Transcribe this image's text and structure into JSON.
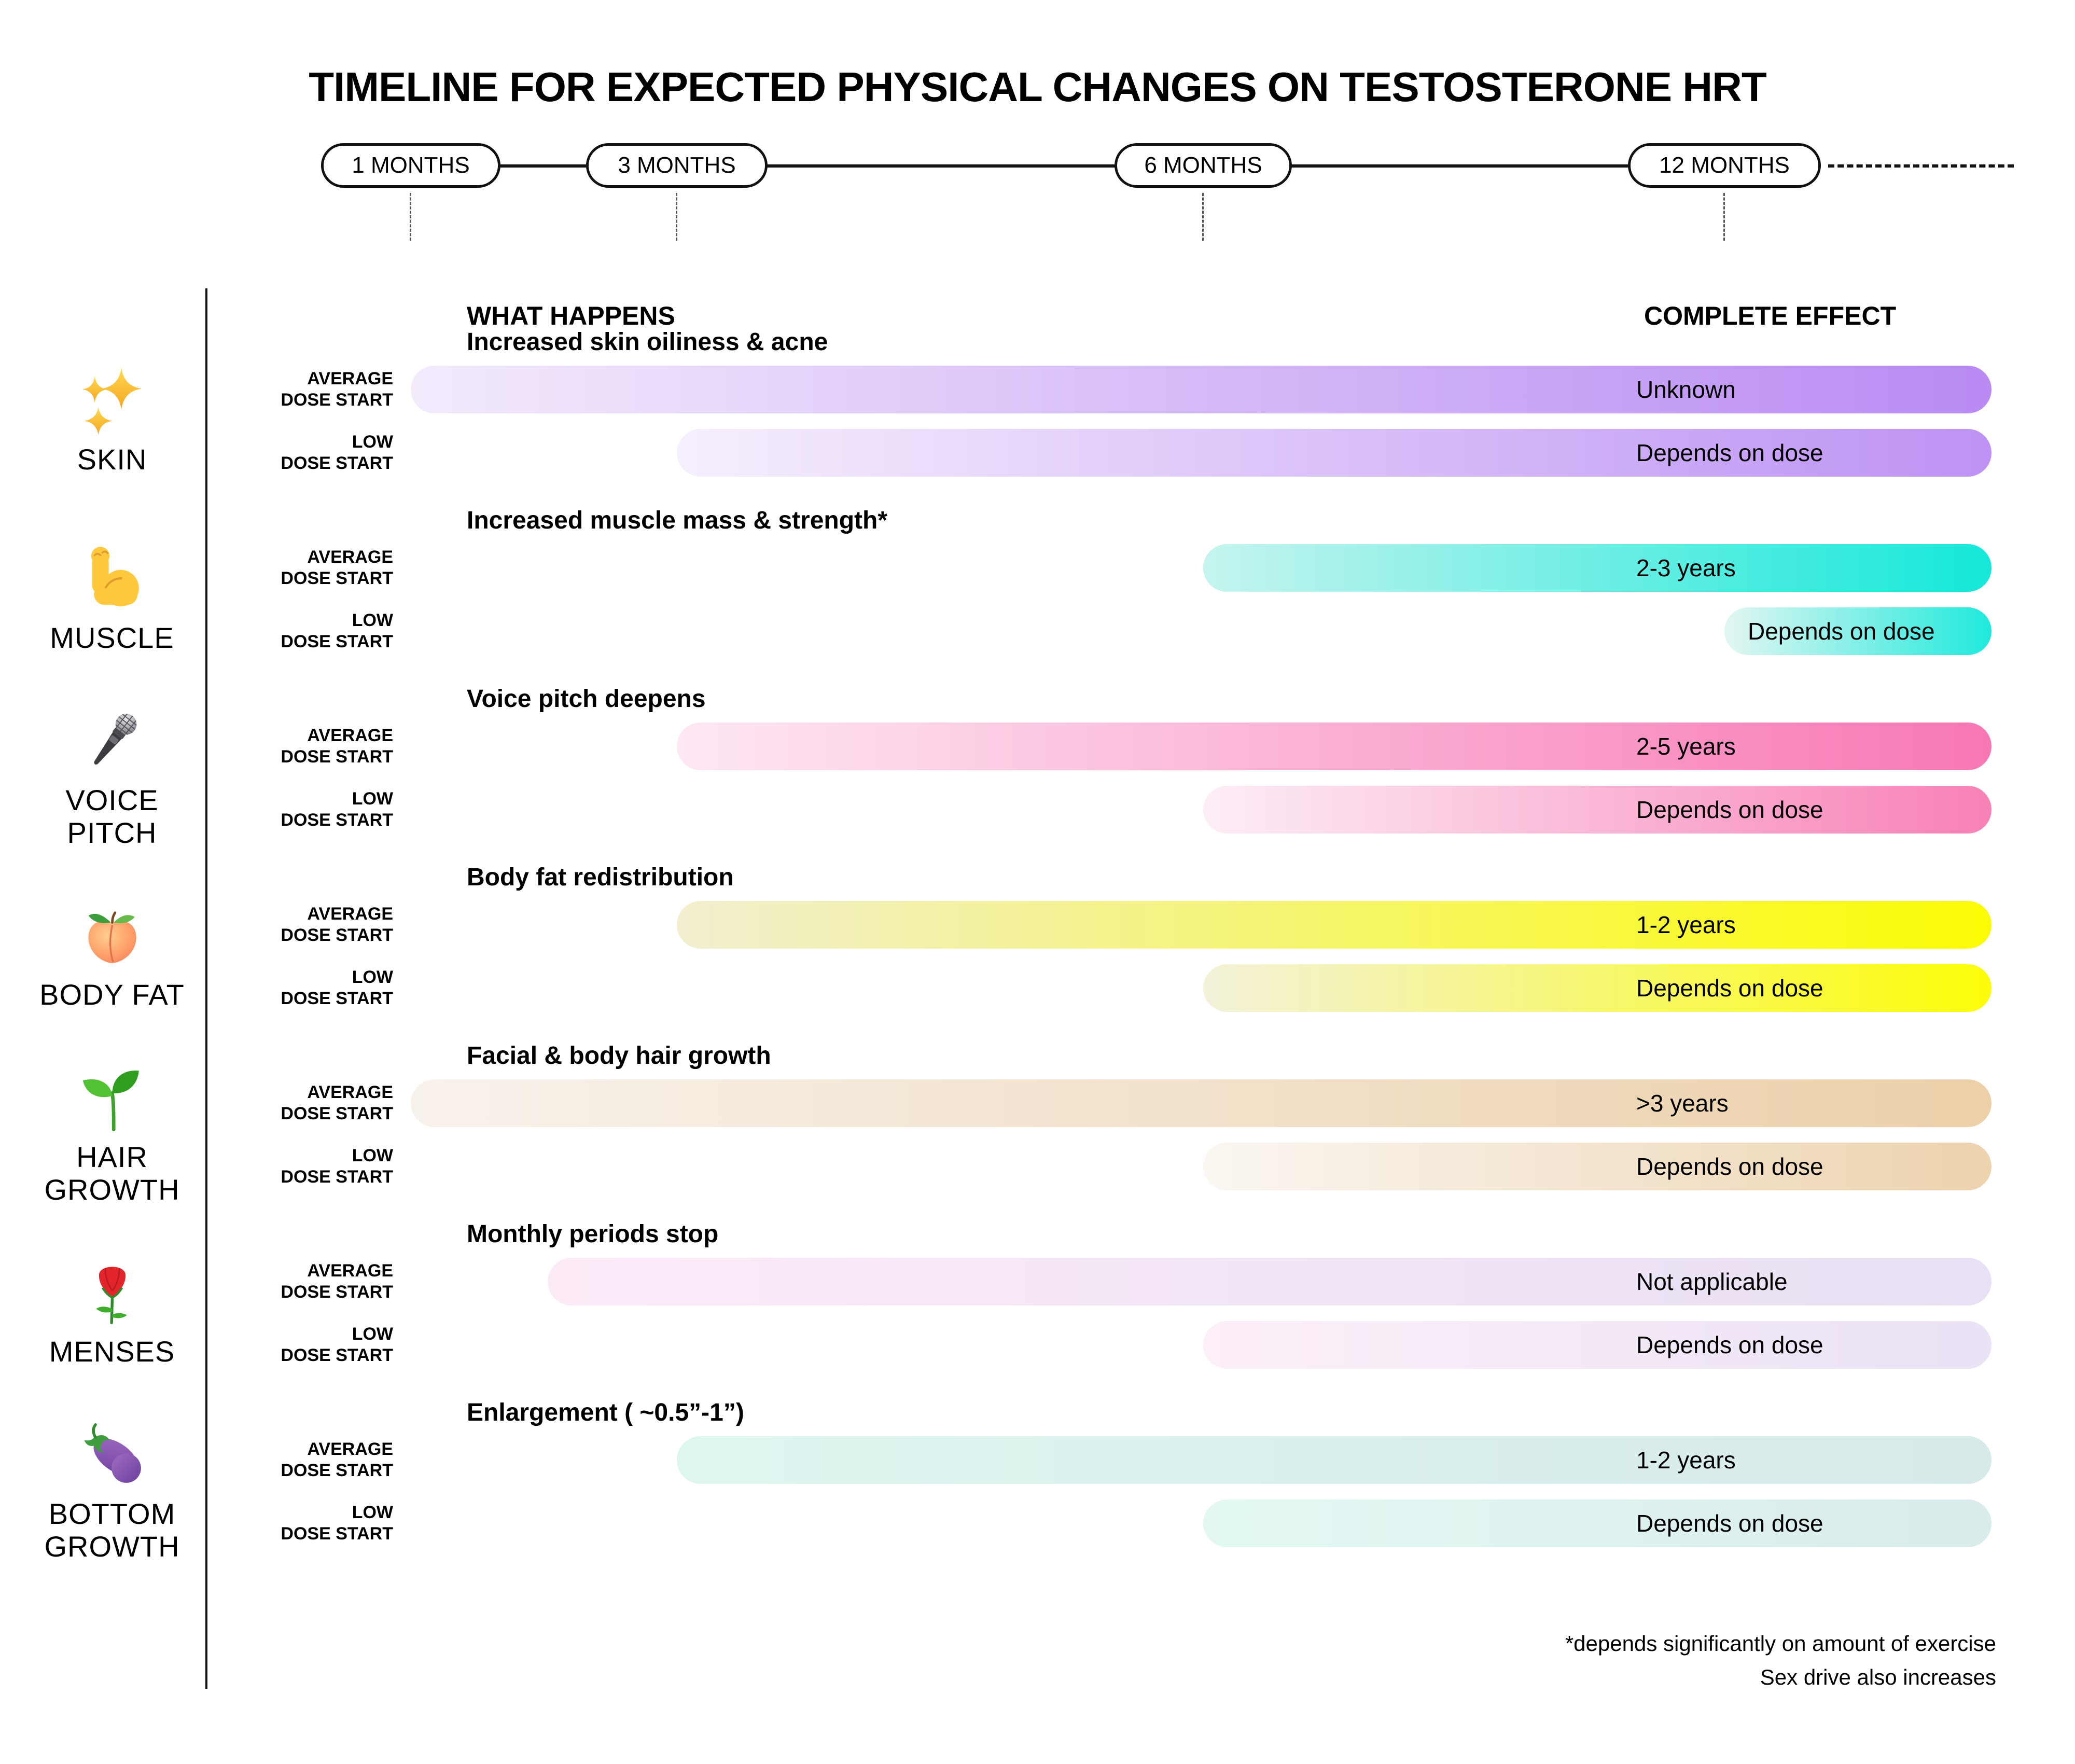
{
  "title": "TIMELINE FOR EXPECTED PHYSICAL CHANGES ON TESTOSTERONE HRT",
  "timeline": {
    "milestones": [
      {
        "label": "1 MONTHS"
      },
      {
        "label": "3 MONTHS"
      },
      {
        "label": "6 MONTHS"
      },
      {
        "label": "12 MONTHS"
      }
    ]
  },
  "columns": {
    "what_happens": "WHAT HAPPENS",
    "complete_effect": "COMPLETE EFFECT"
  },
  "row_labels": {
    "average_line1": "AVERAGE",
    "low_line1": "LOW",
    "dose_start": "DOSE START"
  },
  "categories": [
    {
      "label_line1": "SKIN",
      "label_line2": "",
      "icon": "sparkles-icon",
      "header": "Increased skin oiliness & acne",
      "average": {
        "start_month": 1,
        "label": "Unknown",
        "color_start": "#f3ebfc",
        "color_end": "#b98bf3"
      },
      "low": {
        "start_month": 3,
        "label": "Depends on dose",
        "color_start": "#f6effd",
        "color_end": "#bd92f4"
      }
    },
    {
      "label_line1": "MUSCLE",
      "label_line2": "",
      "icon": "flexed-biceps-icon",
      "header": "Increased muscle mass & strength*",
      "average": {
        "start_month": 6,
        "label": "2-3 years",
        "color_start": "#c6f4ef",
        "color_end": "#14e8d9"
      },
      "low": {
        "start_month": 12,
        "label": "Depends on dose",
        "color_start": "#e3f6f2",
        "color_end": "#1fe9dc"
      }
    },
    {
      "label_line1": "VOICE",
      "label_line2": "PITCH",
      "icon": "microphone-icon",
      "header": "Voice pitch deepens",
      "average": {
        "start_month": 3,
        "label": "2-5 years",
        "color_start": "#fee8f3",
        "color_end": "#f878b4"
      },
      "low": {
        "start_month": 6,
        "label": "Depends on dose",
        "color_start": "#fdeef6",
        "color_end": "#f881b6"
      }
    },
    {
      "label_line1": "BODY FAT",
      "label_line2": "",
      "icon": "peach-icon",
      "header": "Body fat redistribution",
      "average": {
        "start_month": 3,
        "label": "1-2 years",
        "color_start": "#f1efd0",
        "color_end": "#fbfb04"
      },
      "low": {
        "start_month": 6,
        "label": "Depends on dose",
        "color_start": "#f3f2da",
        "color_end": "#fcfc08"
      }
    },
    {
      "label_line1": "HAIR",
      "label_line2": "GROWTH",
      "icon": "seedling-icon",
      "header": "Facial & body hair growth",
      "average": {
        "start_month": 1,
        "label": ">3 years",
        "color_start": "#f8f2ec",
        "color_end": "#ecd0a9"
      },
      "low": {
        "start_month": 6,
        "label": "Depends on dose",
        "color_start": "#faf6f1",
        "color_end": "#edd3ae"
      }
    },
    {
      "label_line1": "MENSES",
      "label_line2": "",
      "icon": "rose-icon",
      "header": "Monthly periods stop",
      "average": {
        "start_month": 2,
        "label": "Not applicable",
        "color_start": "#fcebf7",
        "color_end": "#e8e0f4"
      },
      "low": {
        "start_month": 6,
        "label": "Depends on dose",
        "color_start": "#fceff8",
        "color_end": "#eae2f5"
      }
    },
    {
      "label_line1": "BOTTOM",
      "label_line2": "GROWTH",
      "icon": "eggplant-icon",
      "header": "Enlargement ( ~0.5”-1”)",
      "average": {
        "start_month": 3,
        "label": "1-2 years",
        "color_start": "#def6f0",
        "color_end": "#d6eaea"
      },
      "low": {
        "start_month": 6,
        "label": "Depends on dose",
        "color_start": "#e3f8f3",
        "color_end": "#d9eceb"
      }
    }
  ],
  "footnotes": {
    "line1": "*depends significantly on amount of exercise",
    "line2": "Sex drive also increases"
  },
  "chart_data": {
    "type": "timeline",
    "title": "TIMELINE FOR EXPECTED PHYSICAL CHANGES ON TESTOSTERONE HRT",
    "x_unit": "months",
    "milestones_months": [
      1,
      3,
      6,
      12
    ],
    "x_scale": "non-linear, dashed continuation beyond 12 months",
    "legend": [
      "AVERAGE DOSE START",
      "LOW DOSE START"
    ],
    "series": [
      {
        "category": "Skin",
        "effect": "Increased skin oiliness & acne",
        "bars": [
          {
            "dose": "average",
            "start_month": 1,
            "complete_effect": "Unknown"
          },
          {
            "dose": "low",
            "start_month": 3,
            "complete_effect": "Depends on dose"
          }
        ]
      },
      {
        "category": "Muscle",
        "effect": "Increased muscle mass & strength*",
        "bars": [
          {
            "dose": "average",
            "start_month": 6,
            "complete_effect": "2-3 years"
          },
          {
            "dose": "low",
            "start_month": 12,
            "complete_effect": "Depends on dose"
          }
        ]
      },
      {
        "category": "Voice pitch",
        "effect": "Voice pitch deepens",
        "bars": [
          {
            "dose": "average",
            "start_month": 3,
            "complete_effect": "2-5 years"
          },
          {
            "dose": "low",
            "start_month": 6,
            "complete_effect": "Depends on dose"
          }
        ]
      },
      {
        "category": "Body fat",
        "effect": "Body fat redistribution",
        "bars": [
          {
            "dose": "average",
            "start_month": 3,
            "complete_effect": "1-2 years"
          },
          {
            "dose": "low",
            "start_month": 6,
            "complete_effect": "Depends on dose"
          }
        ]
      },
      {
        "category": "Hair growth",
        "effect": "Facial & body hair growth",
        "bars": [
          {
            "dose": "average",
            "start_month": 1,
            "complete_effect": ">3 years"
          },
          {
            "dose": "low",
            "start_month": 6,
            "complete_effect": "Depends on dose"
          }
        ]
      },
      {
        "category": "Menses",
        "effect": "Monthly periods stop",
        "bars": [
          {
            "dose": "average",
            "start_month": 2,
            "complete_effect": "Not applicable"
          },
          {
            "dose": "low",
            "start_month": 6,
            "complete_effect": "Depends on dose"
          }
        ]
      },
      {
        "category": "Bottom growth",
        "effect": "Enlargement ( ~0.5”-1”)",
        "bars": [
          {
            "dose": "average",
            "start_month": 3,
            "complete_effect": "1-2 years"
          },
          {
            "dose": "low",
            "start_month": 6,
            "complete_effect": "Depends on dose"
          }
        ]
      }
    ]
  }
}
